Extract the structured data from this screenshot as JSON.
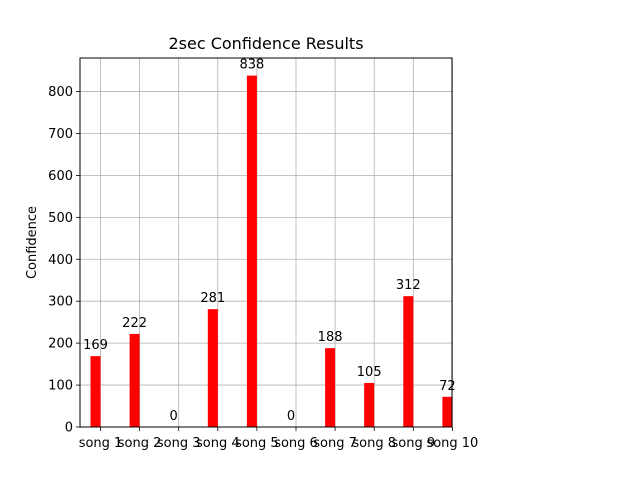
{
  "chart_data": {
    "type": "bar",
    "title": "2sec Confidence Results",
    "xlabel": "",
    "ylabel": "Confidence",
    "categories": [
      "song 1",
      "song 2",
      "song 3",
      "song 4",
      "song 5",
      "song 6",
      "song 7",
      "song 8",
      "song 9",
      "song 10"
    ],
    "values": [
      169,
      222,
      0,
      281,
      838,
      0,
      188,
      105,
      312,
      72
    ],
    "data_labels": [
      "169",
      "222",
      "0",
      "281",
      "838",
      "0",
      "188",
      "105",
      "312",
      "72"
    ],
    "yticks": [
      0,
      100,
      200,
      300,
      400,
      500,
      600,
      700,
      800
    ],
    "ylim": [
      0,
      880
    ],
    "grid": true,
    "bar_color": "#ff0000"
  }
}
